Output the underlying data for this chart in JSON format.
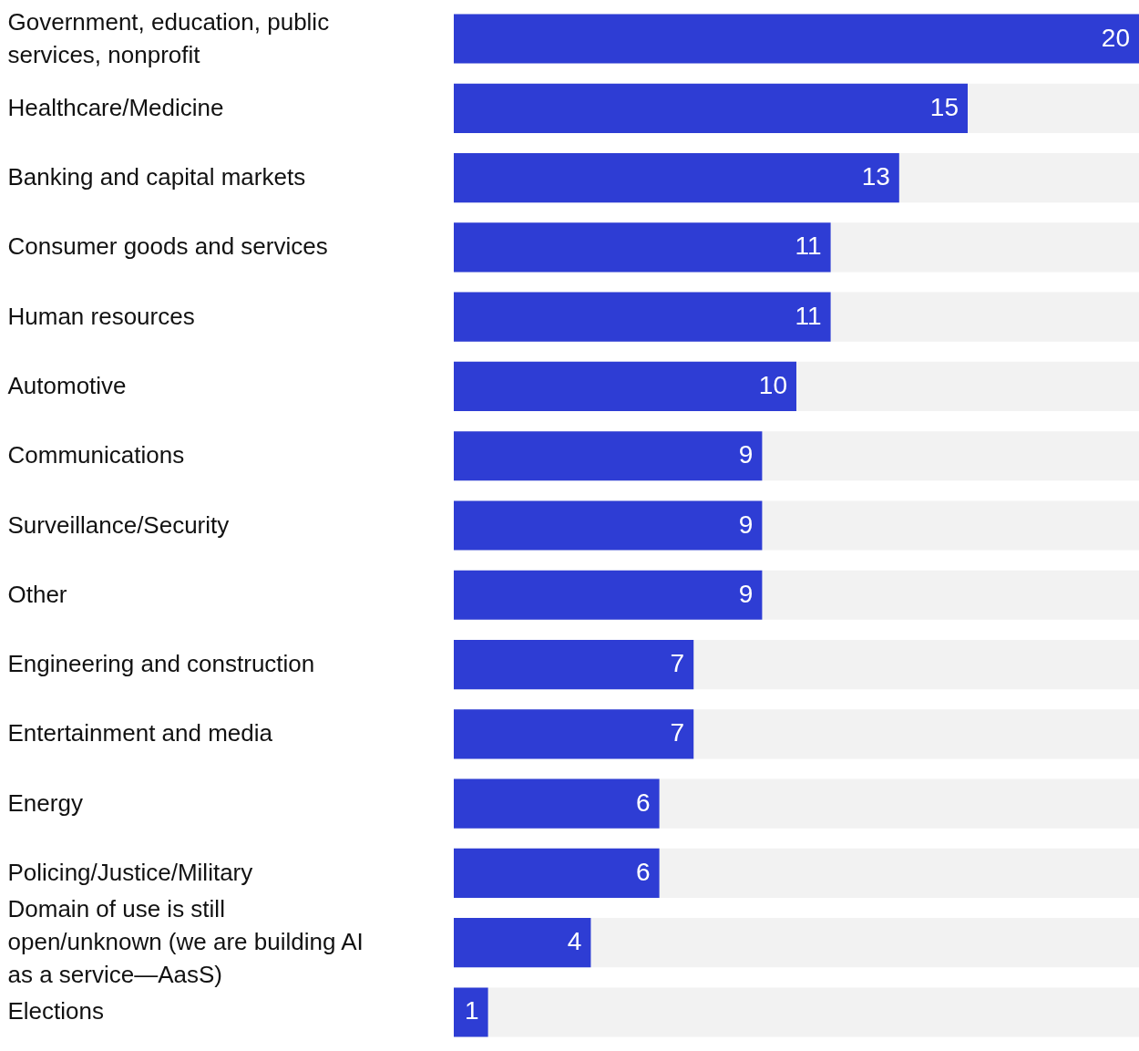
{
  "chart_data": {
    "type": "bar",
    "orientation": "horizontal",
    "data_labels": true,
    "color": "#2e3dd4",
    "xlim": [
      0,
      20
    ],
    "categories": [
      "Government, education, public services, nonprofit",
      "Healthcare/Medicine",
      "Banking and capital markets",
      "Consumer goods and services",
      "Human resources",
      "Automotive",
      "Communications",
      "Surveillance/Security",
      "Other",
      "Engineering and construction",
      "Entertainment and media",
      "Energy",
      "Policing/Justice/Military",
      "Domain of use is still open/unknown (we are building AI as a service—AasS)",
      "Elections"
    ],
    "values": [
      20,
      15,
      13,
      11,
      11,
      10,
      9,
      9,
      9,
      7,
      7,
      6,
      6,
      4,
      1
    ]
  }
}
